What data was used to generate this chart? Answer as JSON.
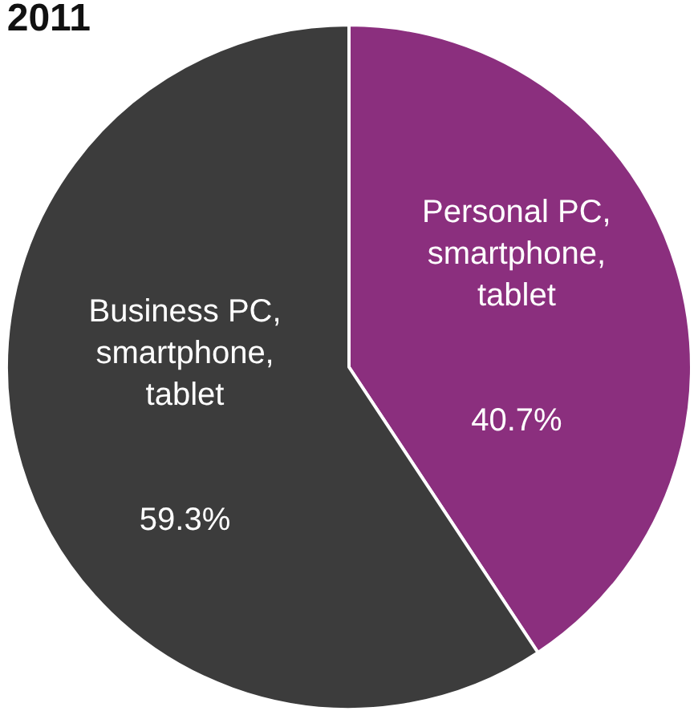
{
  "chart_data": {
    "type": "pie",
    "title": "2011",
    "categories": [
      "Personal PC,\nsmartphone,\ntablet",
      "Business PC,\nsmartphone,\ntablet"
    ],
    "values": [
      40.7,
      59.3
    ],
    "value_labels": [
      "40.7%",
      "59.3%"
    ],
    "colors": [
      "#8b2f7e",
      "#3c3c3c"
    ],
    "legend": false
  }
}
